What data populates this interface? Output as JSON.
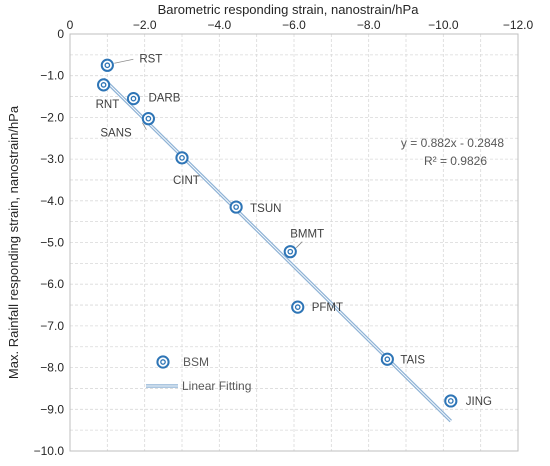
{
  "chart_data": {
    "type": "scatter",
    "title": "",
    "xlabel": "Barometric responding strain, nanostrain/hPa",
    "ylabel": "Max. Rainfall responding strain, nanostrain/hPa",
    "x_axis_position": "top",
    "x_reversed": true,
    "xlim": [
      0,
      -12.0
    ],
    "ylim": [
      0,
      -10.0
    ],
    "x_ticks": [
      "0",
      "−2.0",
      "−4.0",
      "−6.0",
      "−8.0",
      "−10.0",
      "−12.0"
    ],
    "y_ticks": [
      "0",
      "−1.0",
      "−2.0",
      "−3.0",
      "−4.0",
      "−5.0",
      "−6.0",
      "−7.0",
      "−8.0",
      "−9.0",
      "−10.0"
    ],
    "x_tick_values": [
      0,
      -2,
      -4,
      -6,
      -8,
      -10,
      -12
    ],
    "y_tick_values": [
      0,
      -1,
      -2,
      -3,
      -4,
      -5,
      -6,
      -7,
      -8,
      -9,
      -10
    ],
    "grid": true,
    "accent_color": "#2e75b6",
    "series": [
      {
        "name": "BSM",
        "points": [
          {
            "label": "RST",
            "x": -1.0,
            "y": -0.75
          },
          {
            "label": "RNT",
            "x": -0.9,
            "y": -1.22
          },
          {
            "label": "DARB",
            "x": -1.7,
            "y": -1.55
          },
          {
            "label": "SANS",
            "x": -2.1,
            "y": -2.03
          },
          {
            "label": "CINT",
            "x": -3.0,
            "y": -2.97
          },
          {
            "label": "TSUN",
            "x": -4.45,
            "y": -4.15
          },
          {
            "label": "BMMT",
            "x": -5.9,
            "y": -5.22
          },
          {
            "label": "PFMT",
            "x": -6.1,
            "y": -6.55
          },
          {
            "label": "TAIS",
            "x": -8.5,
            "y": -7.8
          },
          {
            "label": "JING",
            "x": -10.2,
            "y": -8.8
          }
        ]
      }
    ],
    "fit": {
      "name": "Linear Fitting",
      "equation": "y = 0.882x - 0.2848",
      "r2": "R² = 0.9826",
      "slope": 0.882,
      "intercept": -0.2848,
      "x_range": [
        -0.9,
        -10.2
      ]
    },
    "legend_position": "bottom-left"
  }
}
